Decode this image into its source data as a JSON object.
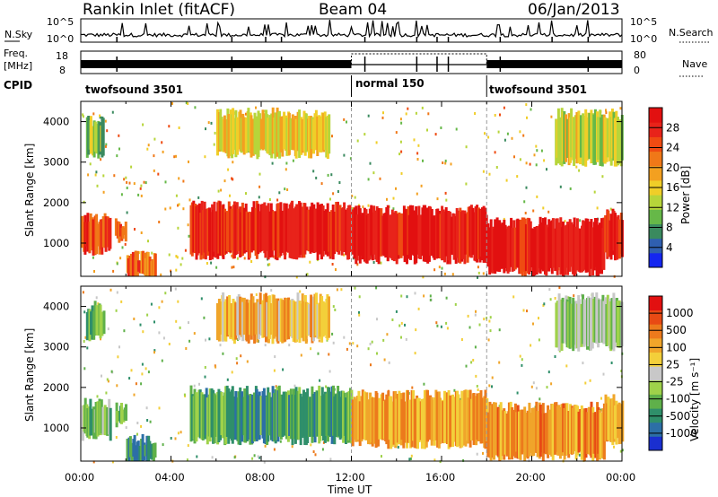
{
  "header": {
    "station": "Rankin Inlet (fitACF)",
    "beam": "Beam 04",
    "date": "06/Jan/2013"
  },
  "top_panels": {
    "nsky_label": "N.Sky",
    "nsky_ticks": [
      "10^5",
      "10^0"
    ],
    "nsearch_label": "N.Search",
    "freq_label": "Freq.",
    "freq_unit": "[MHz]",
    "freq_ticks": [
      "18",
      "8"
    ],
    "nave_label": "Nave",
    "nave_ticks": [
      "80",
      "0"
    ],
    "cpid_label": "CPID",
    "cpid_segments": [
      {
        "start_h": 0,
        "end_h": 12,
        "label": "twofsound 3501"
      },
      {
        "start_h": 12,
        "end_h": 18,
        "label": "normal 150"
      },
      {
        "start_h": 18,
        "end_h": 24,
        "label": "twofsound 3501"
      }
    ]
  },
  "chart_data": [
    {
      "type": "heatmap",
      "name": "power",
      "ylabel": "Slant Range [km]",
      "xlim_hours": [
        0,
        24
      ],
      "ylim_km": [
        180,
        4500
      ],
      "y_ticks": [
        1000,
        2000,
        3000,
        4000
      ],
      "colorbar_label": "Power [dB]",
      "colorbar_ticks": [
        "4",
        "8",
        "12",
        "16",
        "20",
        "24",
        "28"
      ],
      "colorbar_colors": [
        "#1426f0",
        "#2f5fb0",
        "#3a8a5f",
        "#66b848",
        "#b7d53a",
        "#f0ce28",
        "#f3a020",
        "#f07818",
        "#ef4b12",
        "#e8231a",
        "#e21010"
      ],
      "echo_bands": [
        {
          "start_h": 0.0,
          "end_h": 1.3,
          "low_km": 800,
          "high_km": 1600,
          "level": 0.85
        },
        {
          "start_h": 1.5,
          "end_h": 2.0,
          "low_km": 1100,
          "high_km": 1500,
          "level": 0.8
        },
        {
          "start_h": 2.0,
          "end_h": 3.3,
          "low_km": 180,
          "high_km": 700,
          "level": 0.75
        },
        {
          "start_h": 4.8,
          "end_h": 12.0,
          "low_km": 700,
          "high_km": 1900,
          "level": 0.9
        },
        {
          "start_h": 12.0,
          "end_h": 18.0,
          "low_km": 600,
          "high_km": 1800,
          "level": 0.95
        },
        {
          "start_h": 18.0,
          "end_h": 23.2,
          "low_km": 300,
          "high_km": 1500,
          "level": 0.98
        },
        {
          "start_h": 23.2,
          "end_h": 24.0,
          "low_km": 700,
          "high_km": 1700,
          "level": 0.9
        },
        {
          "start_h": 6.0,
          "end_h": 11.0,
          "low_km": 3200,
          "high_km": 4200,
          "level": 0.5
        },
        {
          "start_h": 0.2,
          "end_h": 1.0,
          "low_km": 3200,
          "high_km": 4000,
          "level": 0.35
        },
        {
          "start_h": 21.0,
          "end_h": 24.0,
          "low_km": 3000,
          "high_km": 4200,
          "level": 0.45
        }
      ]
    },
    {
      "type": "heatmap",
      "name": "velocity",
      "ylabel": "Slant Range [km]",
      "xlabel": "Time UT",
      "xlim_hours": [
        0,
        24
      ],
      "x_ticks": [
        "00:00",
        "04:00",
        "08:00",
        "12:00",
        "16:00",
        "20:00",
        "00:00"
      ],
      "ylim_km": [
        180,
        4500
      ],
      "y_ticks": [
        1000,
        2000,
        3000,
        4000
      ],
      "colorbar_label": "Velocity [m s⁻¹]",
      "colorbar_ticks": [
        "1000",
        "500",
        "100",
        "25",
        "-25",
        "-100",
        "-500",
        "-1000"
      ],
      "colorbar_colors": [
        "#1a2fd0",
        "#2c6fa6",
        "#2f8f6a",
        "#5fb04a",
        "#9fd24a",
        "#c8c8c8",
        "#f3cf3a",
        "#f0a52a",
        "#ec7a1c",
        "#e84a14",
        "#e21010"
      ],
      "echo_bands": [
        {
          "start_h": 0.0,
          "end_h": 1.3,
          "low_km": 800,
          "high_km": 1600,
          "level": 0.35
        },
        {
          "start_h": 1.5,
          "end_h": 2.0,
          "low_km": 1100,
          "high_km": 1500,
          "level": 0.3
        },
        {
          "start_h": 2.0,
          "end_h": 3.3,
          "low_km": 180,
          "high_km": 700,
          "level": 0.2
        },
        {
          "start_h": 4.8,
          "end_h": 12.0,
          "low_km": 700,
          "high_km": 1900,
          "level": 0.25
        },
        {
          "start_h": 12.0,
          "end_h": 18.0,
          "low_km": 600,
          "high_km": 1800,
          "level": 0.7
        },
        {
          "start_h": 18.0,
          "end_h": 23.2,
          "low_km": 300,
          "high_km": 1500,
          "level": 0.75
        },
        {
          "start_h": 23.2,
          "end_h": 24.0,
          "low_km": 700,
          "high_km": 1700,
          "level": 0.7
        },
        {
          "start_h": 6.0,
          "end_h": 11.0,
          "low_km": 3200,
          "high_km": 4200,
          "level": 0.65
        },
        {
          "start_h": 0.2,
          "end_h": 1.0,
          "low_km": 3200,
          "high_km": 4000,
          "level": 0.3
        },
        {
          "start_h": 21.0,
          "end_h": 24.0,
          "low_km": 3000,
          "high_km": 4200,
          "level": 0.4
        }
      ]
    }
  ]
}
